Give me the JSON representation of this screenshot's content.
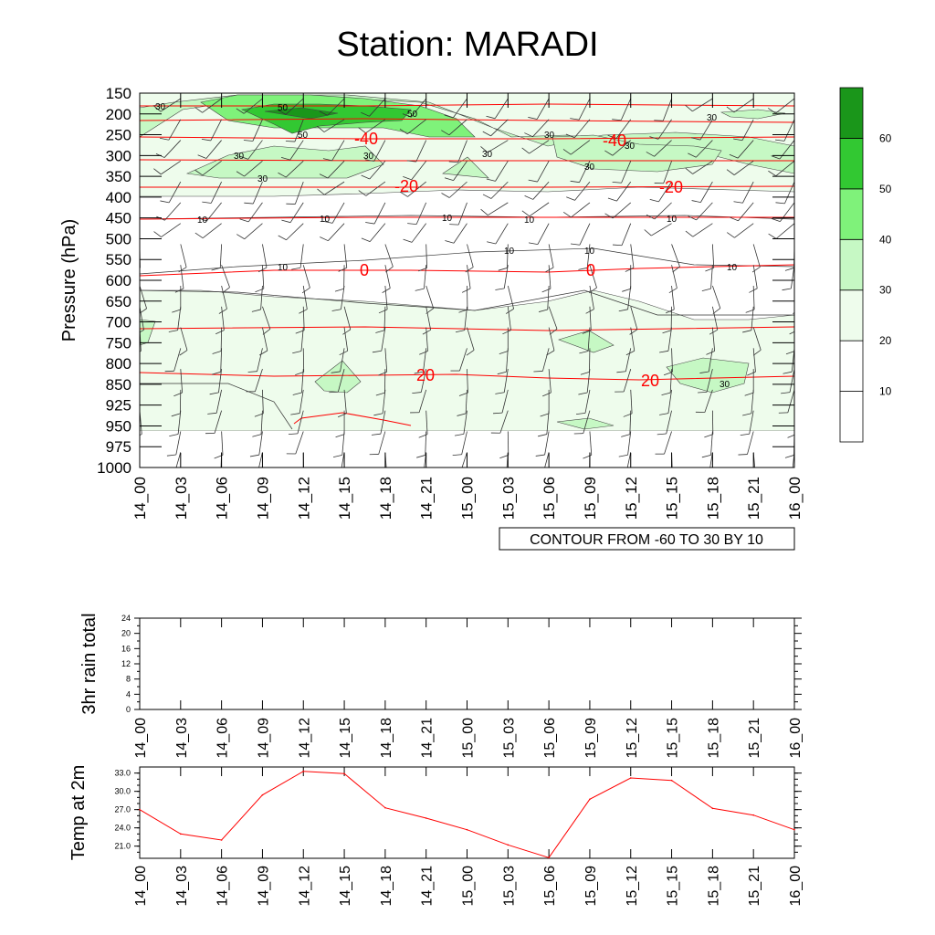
{
  "title": "Station: MARADI",
  "chart_data": [
    {
      "type": "heatmap",
      "ylabel": "Pressure (hPa)",
      "y_ticks": [
        "150",
        "200",
        "250",
        "300",
        "350",
        "400",
        "450",
        "500",
        "550",
        "600",
        "650",
        "700",
        "750",
        "800",
        "850",
        "925",
        "950",
        "975",
        "1000"
      ],
      "x_ticks": [
        "14_00",
        "14_03",
        "14_06",
        "14_09",
        "14_12",
        "14_15",
        "14_18",
        "14_21",
        "15_00",
        "15_03",
        "15_06",
        "15_09",
        "15_12",
        "15_15",
        "15_18",
        "15_21",
        "16_00"
      ],
      "info_label": "CONTOUR FROM -60 TO 30 BY 10",
      "colorbar": {
        "labels": [
          "10",
          "20",
          "30",
          "40",
          "50",
          "60"
        ],
        "colors": [
          "#ffffff",
          "#eefcec",
          "#c6f8c4",
          "#7ff27a",
          "#32c832",
          "#1a961a"
        ]
      },
      "temperature_contour_labels": [
        {
          "text": "-40",
          "value": -40
        },
        {
          "text": "-40",
          "value": -40
        },
        {
          "text": "-20",
          "value": -20
        },
        {
          "text": "-20",
          "value": -20
        },
        {
          "text": "0",
          "value": 0
        },
        {
          "text": "0",
          "value": 0
        },
        {
          "text": "20",
          "value": 20
        },
        {
          "text": "20",
          "value": 20
        }
      ],
      "humidity_contour_labels": [
        "30",
        "50",
        "50",
        "50",
        "30",
        "30",
        "30",
        "30",
        "30",
        "30",
        "30",
        "30",
        "10",
        "10",
        "10",
        "10",
        "10",
        "10",
        "10",
        "10",
        "10",
        "30"
      ]
    },
    {
      "type": "line",
      "ylabel": "3hr rain total",
      "y_ticks": [
        "0",
        "4",
        "8",
        "12",
        "16",
        "20",
        "24"
      ],
      "ylim": [
        0,
        24
      ],
      "x_ticks": [
        "14_00",
        "14_03",
        "14_06",
        "14_09",
        "14_12",
        "14_15",
        "14_18",
        "14_21",
        "15_00",
        "15_03",
        "15_06",
        "15_09",
        "15_12",
        "15_15",
        "15_18",
        "15_21",
        "16_00"
      ],
      "values": []
    },
    {
      "type": "line",
      "ylabel": "Temp at 2m",
      "y_ticks": [
        "21.0",
        "24.0",
        "27.0",
        "30.0",
        "33.0"
      ],
      "ylim": [
        19.0,
        34.0
      ],
      "x_ticks": [
        "14_00",
        "14_03",
        "14_06",
        "14_09",
        "14_12",
        "14_15",
        "14_18",
        "14_21",
        "15_00",
        "15_03",
        "15_06",
        "15_09",
        "15_12",
        "15_15",
        "15_18",
        "15_21",
        "16_00"
      ],
      "values": [
        27.0,
        23.0,
        22.0,
        29.4,
        33.3,
        32.9,
        27.3,
        25.6,
        23.7,
        21.2,
        19.1,
        28.7,
        32.2,
        31.8,
        27.2,
        26.1,
        23.7
      ],
      "line_color": "#ff0000"
    }
  ]
}
